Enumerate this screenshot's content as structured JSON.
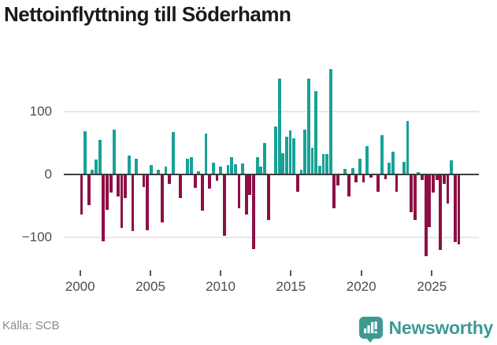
{
  "title": "Nettoinflyttning till Söderhamn",
  "footer": {
    "source": "Källa: SCB",
    "brand": "Newsworthy"
  },
  "colors": {
    "positive_bar": "#18a197",
    "negative_bar": "#8c1045",
    "axis_line": "#3d3d3d",
    "gridline": "#e8e8e8",
    "tick_label": "#4d4d4d",
    "source_text": "#8a8a8a",
    "brand_teal": "#3d9a93",
    "title_text": "#1a1a1a"
  },
  "chart_data": {
    "type": "bar",
    "title": "Nettoinflyttning till Söderhamn",
    "xlabel": "",
    "ylabel": "",
    "legend": "none",
    "grid": "horizontal",
    "ylim": [
      -140,
      180
    ],
    "yticks": [
      "100",
      "0",
      "−100"
    ],
    "ytick_values": [
      100,
      0,
      -100
    ],
    "xticks": [
      "2000",
      "2005",
      "2010",
      "2015",
      "2020",
      "2025"
    ],
    "x_frequency": "quarterly",
    "x_start": "2000 Q1",
    "x_end": "2025 Q4",
    "values": [
      -64,
      69,
      -49,
      8,
      24,
      55,
      -106,
      -56,
      -29,
      71,
      -35,
      -85,
      -37,
      30,
      -90,
      25,
      0,
      -20,
      -89,
      15,
      0,
      7,
      -76,
      13,
      -15,
      68,
      0,
      -37,
      0,
      25,
      27,
      -21,
      5,
      -57,
      65,
      -22,
      19,
      -10,
      12,
      -97,
      15,
      27,
      16,
      -54,
      18,
      -64,
      -33,
      -119,
      27,
      13,
      50,
      -72,
      0,
      76,
      152,
      34,
      60,
      70,
      57,
      -27,
      8,
      71,
      153,
      42,
      133,
      14,
      32,
      33,
      167,
      -54,
      -18,
      0,
      9,
      -35,
      10,
      -12,
      25,
      -13,
      45,
      -5,
      0,
      -28,
      63,
      -8,
      19,
      36,
      -27,
      0,
      20,
      85,
      -60,
      -72,
      4,
      -9,
      -130,
      -84,
      -29,
      -9,
      -120,
      -15,
      -46,
      22,
      -108,
      -111
    ]
  }
}
